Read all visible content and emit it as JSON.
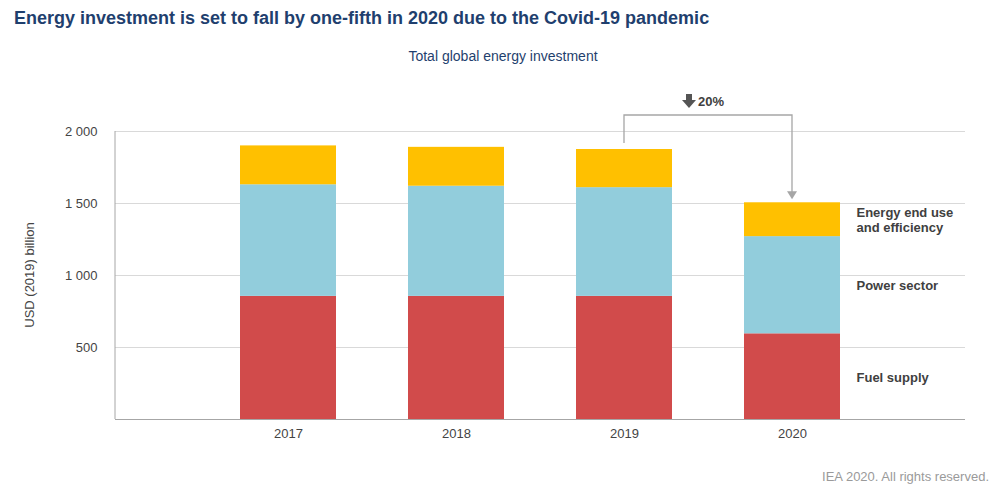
{
  "chart_data": {
    "type": "bar",
    "title": "Energy investment is set to fall by one-fifth in 2020 due to the Covid-19 pandemic",
    "subtitle": "Total global energy investment",
    "caption": "IEA 2020. All rights reserved.",
    "y_label": "USD (2019) billion",
    "categories": [
      "2017",
      "2018",
      "2019",
      "2020"
    ],
    "series": [
      {
        "name": "Fuel supply",
        "color": "#d14b4b",
        "values": [
          855,
          855,
          855,
          595
        ]
      },
      {
        "name": "Power sector",
        "color": "#92cddc",
        "values": [
          775,
          765,
          755,
          675
        ]
      },
      {
        "name": "Energy end use and efficiency",
        "color": "#ffc000",
        "values": [
          270,
          270,
          265,
          235
        ]
      }
    ],
    "stacked": true,
    "ylim": [
      0,
      2000
    ],
    "yticks": [
      500,
      {
        "value": 1000,
        "label": "1 000"
      },
      {
        "value": 1500,
        "label": "1 500"
      },
      {
        "value": 2000,
        "label": "2 000"
      }
    ],
    "grid": true,
    "legend": "right",
    "annotations": [
      {
        "text": "20%",
        "from": "2019",
        "to": "2020"
      }
    ]
  }
}
